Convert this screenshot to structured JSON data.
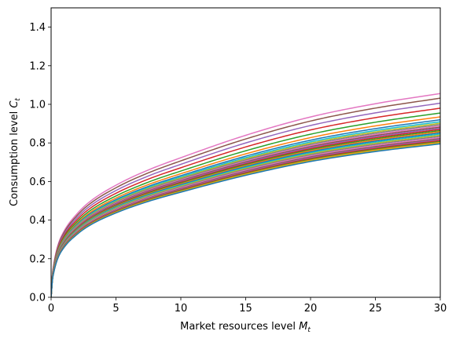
{
  "chart_data": {
    "type": "line",
    "title": "",
    "xlabel": {
      "text": "Market resources level ",
      "var": "M",
      "sub": "t"
    },
    "ylabel": {
      "text": "Consumption level ",
      "var": "C",
      "sub": "t"
    },
    "xlim": [
      0,
      30
    ],
    "ylim": [
      0,
      1.5
    ],
    "xticks": [
      0,
      5,
      10,
      15,
      20,
      25,
      30
    ],
    "yticks": [
      0.0,
      0.2,
      0.4,
      0.6,
      0.8,
      1.0,
      1.2,
      1.4
    ],
    "ytick_labels": [
      "0.0",
      "0.2",
      "0.4",
      "0.6",
      "0.8",
      "1.0",
      "1.2",
      "1.4"
    ],
    "grid": false,
    "legend": "none",
    "x": [
      0,
      0.1,
      0.2,
      0.5,
      1,
      2,
      3,
      5,
      7.5,
      10,
      15,
      20,
      25,
      30
    ],
    "series_profile": [
      0,
      0.11,
      0.16,
      0.25,
      0.325,
      0.41,
      0.47,
      0.55,
      0.625,
      0.685,
      0.795,
      0.885,
      0.95,
      1.0
    ],
    "series": [
      {
        "color": "#e377c2",
        "end_value": 1.056
      },
      {
        "color": "#8c564b",
        "end_value": 1.032
      },
      {
        "color": "#9467bd",
        "end_value": 1.006
      },
      {
        "color": "#d62728",
        "end_value": 0.98
      },
      {
        "color": "#2ca02c",
        "end_value": 0.955
      },
      {
        "color": "#ff7f0e",
        "end_value": 0.935
      },
      {
        "color": "#1f77b4",
        "end_value": 0.92
      },
      {
        "color": "#17becf",
        "end_value": 0.91
      },
      {
        "color": "#bcbd22",
        "end_value": 0.902
      },
      {
        "color": "#7f7f7f",
        "end_value": 0.895
      },
      {
        "color": "#e377c2",
        "end_value": 0.888
      },
      {
        "color": "#8c564b",
        "end_value": 0.882
      },
      {
        "color": "#9467bd",
        "end_value": 0.876
      },
      {
        "color": "#d62728",
        "end_value": 0.87
      },
      {
        "color": "#2ca02c",
        "end_value": 0.864
      },
      {
        "color": "#ff7f0e",
        "end_value": 0.858
      },
      {
        "color": "#1f77b4",
        "end_value": 0.852
      },
      {
        "color": "#17becf",
        "end_value": 0.846
      },
      {
        "color": "#bcbd22",
        "end_value": 0.84
      },
      {
        "color": "#7f7f7f",
        "end_value": 0.834
      },
      {
        "color": "#e377c2",
        "end_value": 0.828
      },
      {
        "color": "#8c564b",
        "end_value": 0.822
      },
      {
        "color": "#9467bd",
        "end_value": 0.817
      },
      {
        "color": "#d62728",
        "end_value": 0.812
      },
      {
        "color": "#2ca02c",
        "end_value": 0.807
      },
      {
        "color": "#ff7f0e",
        "end_value": 0.803
      },
      {
        "color": "#bcbd22",
        "end_value": 0.799
      },
      {
        "color": "#1f77b4",
        "end_value": 0.795
      }
    ]
  }
}
